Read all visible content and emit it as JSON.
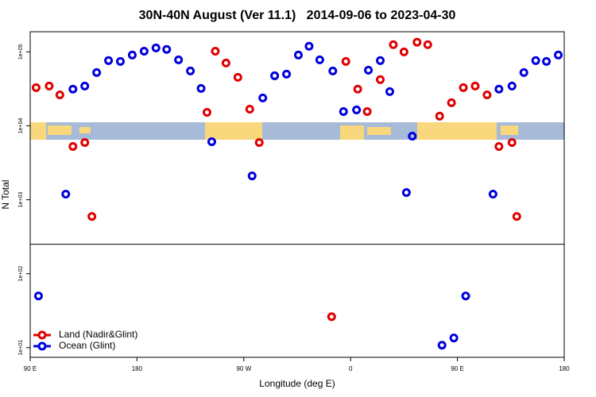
{
  "chart_data": {
    "type": "scatter",
    "title": "30N-40N August (Ver 11.1)   2014-09-06 to 2023-04-30",
    "x_label": "Longitude (deg E)",
    "y_label": "N Total",
    "xlim": [
      90,
      540
    ],
    "ylim": [
      7.4,
      187000
    ],
    "log_y": true,
    "legend": "bottomleft",
    "hline": 250,
    "xticks": [
      {
        "value": 90,
        "label": "90 E"
      },
      180,
      {
        "value": 270,
        "label": "90 W"
      },
      {
        "value": 360,
        "label": "0"
      },
      {
        "value": 450,
        "label": "90 E"
      },
      {
        "value": 540,
        "label": "180"
      }
    ],
    "yticks": [
      {
        "value": 10,
        "label": "1e+01"
      },
      {
        "value": 100,
        "label": "1e+02"
      },
      {
        "value": 1000,
        "label": "1e+03"
      },
      {
        "value": 10000,
        "label": "1e+04"
      },
      {
        "value": 100000,
        "label": "1e+05"
      }
    ],
    "series": [
      {
        "name": "Land (Nadir&Glint)",
        "color": "#e00000",
        "x": [
          95,
          106,
          115,
          126,
          136,
          142,
          239,
          246,
          255,
          265,
          275,
          283,
          344,
          356,
          366,
          374,
          385,
          396,
          405,
          416,
          425,
          435,
          445,
          455,
          465,
          475,
          485,
          496,
          500
        ],
        "values": [
          32800,
          34500,
          26200,
          5250,
          5940,
          594,
          15200,
          102000,
          70600,
          45300,
          16800,
          5940,
          26.2,
          74300,
          31300,
          15600,
          42100,
          125000,
          100000,
          135000,
          125000,
          13500,
          20500,
          32800,
          34500,
          26200,
          5250,
          5940,
          594
        ]
      },
      {
        "name": "Ocean (Glint)",
        "color": "#0000dd",
        "x": [
          97,
          120,
          126,
          136,
          146,
          156,
          166,
          176,
          186,
          196,
          205,
          215,
          225,
          234,
          243,
          277,
          286,
          296,
          306,
          316,
          325,
          334,
          345,
          354,
          365,
          375,
          385,
          393,
          407,
          412,
          437,
          447,
          457,
          480,
          485,
          496,
          506,
          516,
          525,
          535
        ],
        "values": [
          50,
          1190,
          31300,
          34500,
          52500,
          76200,
          74300,
          90600,
          102000,
          113000,
          108000,
          78000,
          55200,
          32000,
          6090,
          2100,
          23800,
          47500,
          50000,
          90600,
          119000,
          78000,
          55200,
          15600,
          16400,
          56600,
          76200,
          29000,
          1250,
          7240,
          10.8,
          13.5,
          50,
          1190,
          31300,
          34500,
          52500,
          76200,
          74300,
          90600
        ]
      }
    ]
  }
}
